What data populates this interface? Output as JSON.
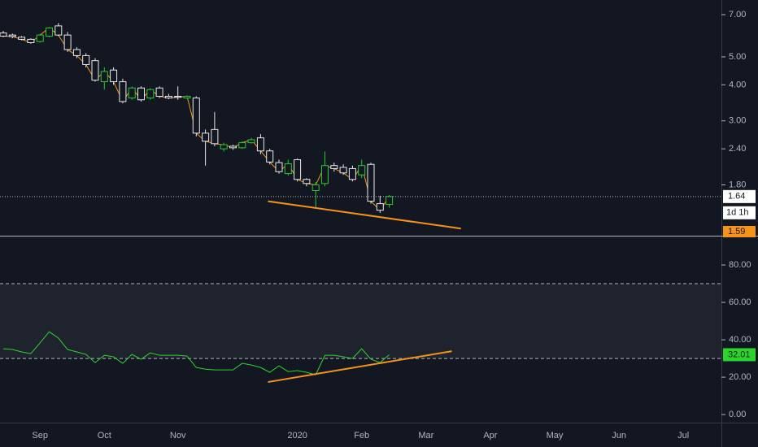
{
  "chart_data": [
    {
      "type": "candlestick",
      "categories": [
        null,
        null,
        null,
        null,
        "Sep",
        null,
        null,
        null,
        null,
        null,
        null,
        "Oct",
        null,
        null,
        null,
        null,
        null,
        null,
        null,
        "Nov",
        null,
        null,
        null,
        null,
        null,
        null,
        null,
        null,
        null,
        null,
        null,
        null,
        "2020",
        null,
        null,
        null,
        null,
        null,
        null,
        "Feb",
        null,
        null,
        null,
        null,
        null,
        null,
        "Mar",
        null,
        null,
        null,
        null,
        null,
        null,
        "Apr",
        null,
        null,
        null,
        null,
        null,
        null,
        "May",
        null,
        null,
        null,
        null,
        null,
        null,
        "Jun",
        null,
        null,
        null,
        null,
        null,
        null,
        "Jul"
      ],
      "open": [
        6.05,
        5.95,
        5.85,
        5.75,
        5.65,
        5.9,
        6.4,
        5.95,
        5.3,
        5.05,
        4.85,
        4.1,
        4.5,
        4.1,
        3.6,
        3.9,
        3.6,
        3.9,
        3.65,
        3.65,
        3.6,
        3.6,
        2.72,
        2.8,
        2.4,
        2.45,
        2.42,
        2.52,
        2.62,
        2.36,
        2.15,
        1.97,
        2.2,
        1.88,
        1.72,
        1.82,
        2.1,
        2.07,
        2.05,
        1.95,
        2.12,
        1.55,
        1.54,
        null,
        null,
        null,
        null,
        null,
        null,
        null,
        null,
        null,
        null,
        null,
        null,
        null,
        null,
        null,
        null,
        null,
        null,
        null,
        null,
        null,
        null,
        null,
        null,
        null,
        null,
        null,
        null,
        null,
        null,
        null,
        null
      ],
      "high": [
        6.15,
        6.02,
        5.9,
        5.8,
        6.0,
        6.35,
        6.55,
        6.1,
        5.4,
        5.15,
        4.95,
        4.6,
        4.6,
        4.2,
        3.95,
        3.95,
        3.9,
        3.95,
        3.72,
        3.95,
        3.68,
        3.65,
        2.8,
        3.22,
        2.52,
        2.48,
        2.55,
        2.62,
        2.7,
        2.4,
        2.2,
        2.2,
        2.22,
        1.9,
        1.84,
        2.35,
        2.15,
        2.12,
        2.1,
        2.2,
        2.15,
        1.65,
        1.66,
        null,
        null,
        null,
        null,
        null,
        null,
        null,
        null,
        null,
        null,
        null,
        null,
        null,
        null,
        null,
        null,
        null,
        null,
        null,
        null,
        null,
        null,
        null,
        null,
        null,
        null,
        null,
        null,
        null,
        null,
        null,
        null
      ],
      "low": [
        5.85,
        5.8,
        5.7,
        5.55,
        5.6,
        5.85,
        5.9,
        5.2,
        4.95,
        4.6,
        4.1,
        3.85,
        4.0,
        3.45,
        3.55,
        3.5,
        3.55,
        3.6,
        3.57,
        3.55,
        3.58,
        2.65,
        2.1,
        2.45,
        2.35,
        2.38,
        2.4,
        2.5,
        2.3,
        2.12,
        1.97,
        1.94,
        1.85,
        1.78,
        1.5,
        1.78,
        2.0,
        1.95,
        1.85,
        1.9,
        1.55,
        1.44,
        1.5,
        null,
        null,
        null,
        null,
        null,
        null,
        null,
        null,
        null,
        null,
        null,
        null,
        null,
        null,
        null,
        null,
        null,
        null,
        null,
        null,
        null,
        null,
        null,
        null,
        null,
        null,
        null,
        null,
        null,
        null,
        null,
        null
      ],
      "close": [
        5.9,
        5.88,
        5.75,
        5.6,
        5.95,
        6.3,
        5.95,
        5.3,
        5.05,
        4.7,
        4.15,
        4.45,
        4.1,
        3.5,
        3.9,
        3.55,
        3.85,
        3.65,
        3.6,
        3.62,
        3.65,
        2.72,
        2.55,
        2.5,
        2.48,
        2.42,
        2.52,
        2.58,
        2.36,
        2.16,
        2.0,
        2.13,
        1.88,
        1.82,
        1.8,
        2.1,
        2.05,
        1.98,
        1.88,
        2.1,
        1.58,
        1.47,
        1.64,
        null,
        null,
        null,
        null,
        null,
        null,
        null,
        null,
        null,
        null,
        null,
        null,
        null,
        null,
        null,
        null,
        null,
        null,
        null,
        null,
        null,
        null,
        null,
        null,
        null,
        null,
        null,
        null,
        null,
        null,
        null,
        null
      ],
      "up_color": "#26c82f",
      "down_color": "#e8e8e8",
      "close_line_color": "#f7931a",
      "log_scale": true,
      "ylim": [
        1.2,
        7.87
      ],
      "yticks": [
        {
          "value": 1.8,
          "label": "1.80"
        },
        {
          "value": 2.4,
          "label": "2.40"
        },
        {
          "value": 3,
          "label": "3.00"
        },
        {
          "value": 4,
          "label": "4.00"
        },
        {
          "value": 5,
          "label": "5.00"
        },
        {
          "value": 7,
          "label": "7.00"
        }
      ],
      "last_price": 1.64,
      "countdown": "1d 1h",
      "trend_value": 1.59,
      "trendlines": [
        {
          "from": [
            28.8,
            1.58
          ],
          "to": [
            49.8,
            1.27
          ],
          "color": "#f7931a"
        }
      ]
    },
    {
      "type": "line",
      "values": [
        35.2,
        34.8,
        33.5,
        32.6,
        38.3,
        44.3,
        40.9,
        34.8,
        33.5,
        32.2,
        27.8,
        31.7,
        30.9,
        27.4,
        32.2,
        29.6,
        33.0,
        31.7,
        31.7,
        31.7,
        31.3,
        25.2,
        24.3,
        23.9,
        23.9,
        23.9,
        27.4,
        26.5,
        25.2,
        22.6,
        26.1,
        23.0,
        23.5,
        22.6,
        21.3,
        31.7,
        31.7,
        30.9,
        30.0,
        35.2,
        29.6,
        27.8,
        32.01,
        null,
        null,
        null,
        null,
        null,
        null,
        null,
        null,
        null,
        null,
        null,
        null,
        null,
        null,
        null,
        null,
        null,
        null,
        null,
        null,
        null,
        null,
        null,
        null,
        null,
        null,
        null,
        null,
        null,
        null,
        null,
        null
      ],
      "color": "#2bd62b",
      "ylim": [
        -4.3,
        94.8
      ],
      "yticks": [
        {
          "value": 0,
          "label": "0.00"
        },
        {
          "value": 20,
          "label": "20.00"
        },
        {
          "value": 40,
          "label": "40.00"
        },
        {
          "value": 60,
          "label": "60.00"
        },
        {
          "value": 80,
          "label": "80.00"
        }
      ],
      "levels": [
        70,
        30
      ],
      "band": [
        30,
        70
      ],
      "last_value": 32.01,
      "trendlines": [
        {
          "from": [
            28.8,
            17.4
          ],
          "to": [
            48.8,
            33.9
          ],
          "color": "#f7931a"
        }
      ]
    }
  ]
}
